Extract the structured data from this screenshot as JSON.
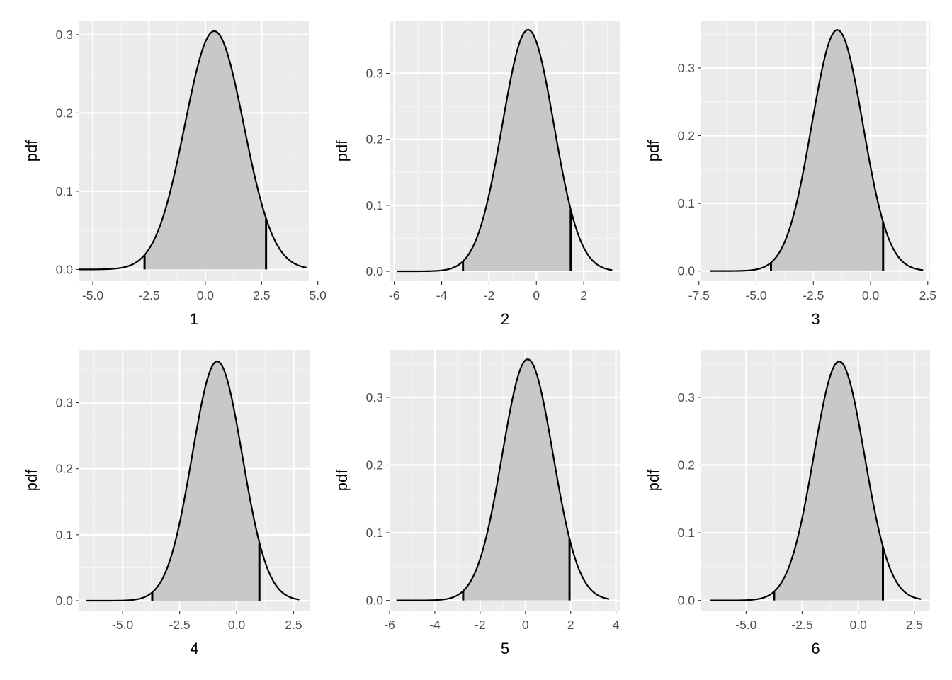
{
  "colors": {
    "panel_bg": "#EBEBEB",
    "grid_major": "#FFFFFF",
    "grid_minor": "#F5F5F5",
    "fill": "#C8C8C8",
    "line": "#000000",
    "tick_text": "#4D4D4D",
    "axis_title": "#000000"
  },
  "chart_data": [
    {
      "type": "area",
      "xlabel": "1",
      "ylabel": "pdf",
      "xlim": [
        -5.6,
        4.6
      ],
      "ylim": [
        -0.015,
        0.318
      ],
      "x_ticks": [
        -5.0,
        -2.5,
        0.0,
        2.5,
        5.0
      ],
      "x_tick_labels": [
        "-5.0",
        "-2.5",
        "0.0",
        "2.5",
        "5.0"
      ],
      "y_ticks": [
        0.0,
        0.1,
        0.2,
        0.3
      ],
      "y_tick_labels": [
        "0.0",
        "0.1",
        "0.2",
        "0.3"
      ],
      "curve": {
        "distribution": "normal",
        "mean": 0.4,
        "sd": 1.31,
        "x_range": [
          -5.6,
          4.5
        ]
      },
      "shaded_interval": [
        -2.7,
        2.7
      ],
      "grid": true
    },
    {
      "type": "area",
      "xlabel": "2",
      "ylabel": "pdf",
      "xlim": [
        -6.2,
        3.55
      ],
      "ylim": [
        -0.015,
        0.38
      ],
      "x_ticks": [
        -6,
        -4,
        -2,
        0,
        2
      ],
      "x_tick_labels": [
        "-6",
        "-4",
        "-2",
        "0",
        "2"
      ],
      "y_ticks": [
        0.0,
        0.1,
        0.2,
        0.3
      ],
      "y_tick_labels": [
        "0.0",
        "0.1",
        "0.2",
        "0.3"
      ],
      "curve": {
        "distribution": "normal",
        "mean": -0.35,
        "sd": 1.09,
        "x_range": [
          -5.9,
          3.2
        ]
      },
      "shaded_interval": [
        -3.1,
        1.45
      ],
      "grid": true
    },
    {
      "type": "area",
      "xlabel": "3",
      "ylabel": "pdf",
      "xlim": [
        -7.4,
        2.6
      ],
      "ylim": [
        -0.015,
        0.37
      ],
      "x_ticks": [
        -7.5,
        -5.0,
        -2.5,
        0.0,
        2.5
      ],
      "x_tick_labels": [
        "-7.5",
        "-5.0",
        "-2.5",
        "0.0",
        "2.5"
      ],
      "y_ticks": [
        0.0,
        0.1,
        0.2,
        0.3
      ],
      "y_tick_labels": [
        "0.0",
        "0.1",
        "0.2",
        "0.3"
      ],
      "curve": {
        "distribution": "normal",
        "mean": -1.45,
        "sd": 1.12,
        "x_range": [
          -7.0,
          2.3
        ]
      },
      "shaded_interval": [
        -4.35,
        0.55
      ],
      "grid": true
    },
    {
      "type": "area",
      "xlabel": "4",
      "ylabel": "pdf",
      "xlim": [
        -6.9,
        3.2
      ],
      "ylim": [
        -0.015,
        0.38
      ],
      "x_ticks": [
        -5.0,
        -2.5,
        0.0,
        2.5
      ],
      "x_tick_labels": [
        "-5.0",
        "-2.5",
        "0.0",
        "2.5"
      ],
      "y_ticks": [
        0.0,
        0.1,
        0.2,
        0.3
      ],
      "y_tick_labels": [
        "0.0",
        "0.1",
        "0.2",
        "0.3"
      ],
      "curve": {
        "distribution": "normal",
        "mean": -0.85,
        "sd": 1.1,
        "x_range": [
          -6.6,
          2.75
        ]
      },
      "shaded_interval": [
        -3.7,
        1.0
      ],
      "grid": true
    },
    {
      "type": "area",
      "xlabel": "5",
      "ylabel": "pdf",
      "xlim": [
        -6.0,
        4.2
      ],
      "ylim": [
        -0.015,
        0.37
      ],
      "x_ticks": [
        -6,
        -4,
        -2,
        0,
        2,
        4
      ],
      "x_tick_labels": [
        "-6",
        "-4",
        "-2",
        "0",
        "2",
        "4"
      ],
      "y_ticks": [
        0.0,
        0.1,
        0.2,
        0.3
      ],
      "y_tick_labels": [
        "0.0",
        "0.1",
        "0.2",
        "0.3"
      ],
      "curve": {
        "distribution": "normal",
        "mean": 0.1,
        "sd": 1.12,
        "x_range": [
          -5.7,
          3.7
        ]
      },
      "shaded_interval": [
        -2.75,
        1.95
      ],
      "grid": true
    },
    {
      "type": "area",
      "xlabel": "6",
      "ylabel": "pdf",
      "xlim": [
        -7.0,
        3.2
      ],
      "ylim": [
        -0.015,
        0.37
      ],
      "x_ticks": [
        -5.0,
        -2.5,
        0.0,
        2.5
      ],
      "x_tick_labels": [
        "-5.0",
        "-2.5",
        "0.0",
        "2.5"
      ],
      "y_ticks": [
        0.0,
        0.1,
        0.2,
        0.3
      ],
      "y_tick_labels": [
        "0.0",
        "0.1",
        "0.2",
        "0.3"
      ],
      "curve": {
        "distribution": "normal",
        "mean": -0.85,
        "sd": 1.13,
        "x_range": [
          -6.6,
          2.8
        ]
      },
      "shaded_interval": [
        -3.75,
        1.1
      ],
      "grid": true
    }
  ]
}
